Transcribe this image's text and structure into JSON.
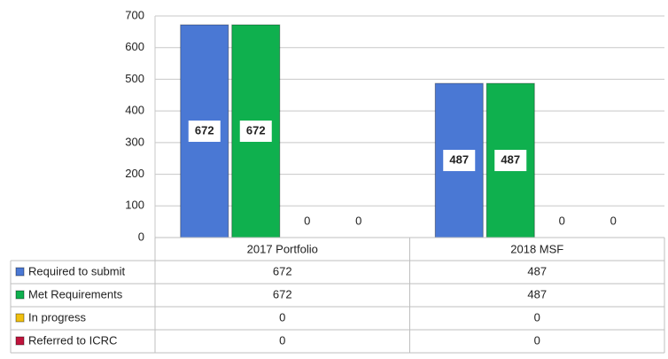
{
  "chart_data": {
    "type": "bar",
    "categories": [
      "2017 Portfolio",
      "2018 MSF"
    ],
    "series": [
      {
        "name": "Required to submit",
        "color": "#4a78d4",
        "values": [
          672,
          487
        ]
      },
      {
        "name": "Met Requirements",
        "color": "#0fb04e",
        "values": [
          672,
          487
        ]
      },
      {
        "name": "In progress",
        "color": "#f0c010",
        "values": [
          0,
          0
        ]
      },
      {
        "name": "Referred to ICRC",
        "color": "#c0143c",
        "values": [
          0,
          0
        ]
      }
    ],
    "ylim": [
      0,
      700
    ],
    "yticks": [
      0,
      100,
      200,
      300,
      400,
      500,
      600,
      700
    ],
    "grid": true,
    "data_table": true
  }
}
